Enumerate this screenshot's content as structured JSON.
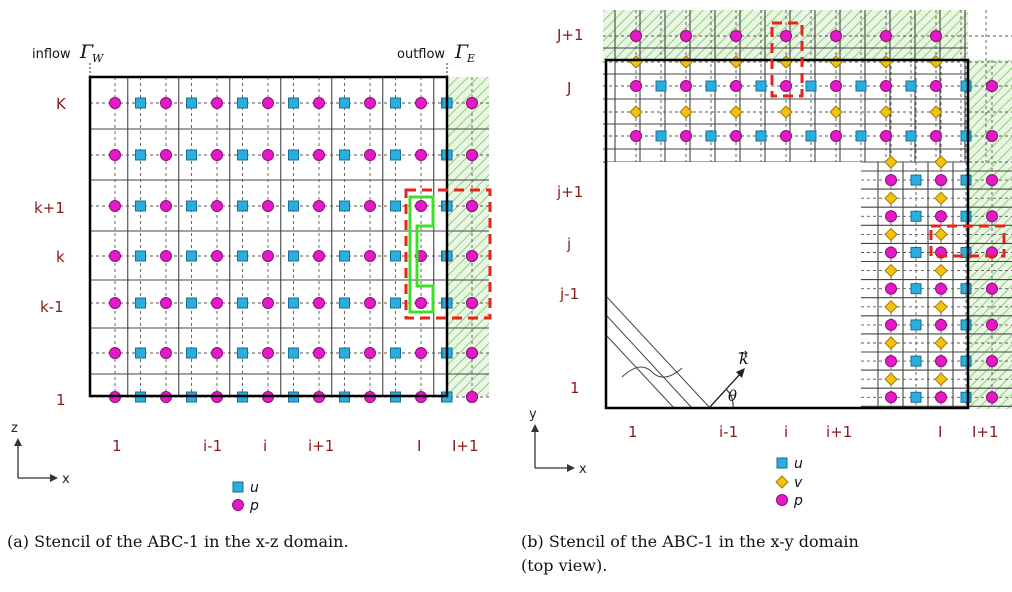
{
  "colors": {
    "u": "#29aee0",
    "p": "#e619c8",
    "v": "#f4c20d",
    "label": "#8b1a1a",
    "highlight_red": "#e8231c",
    "highlight_green": "#3ee027",
    "hatch": "#8fcf7a"
  },
  "panel_a": {
    "inflow_label": "inflow",
    "inflow_symbol": "Γ",
    "inflow_sub": "W",
    "outflow_label": "outflow",
    "outflow_symbol": "Γ",
    "outflow_sub": "E",
    "row_labels": [
      "K",
      "k+1",
      "k",
      "k-1",
      "1"
    ],
    "col_labels": [
      "1",
      "i-1",
      "i",
      "i+1",
      "I",
      "I+1"
    ],
    "axis_vertical": "z",
    "axis_horizontal": "x",
    "legend": [
      {
        "marker": "square-marker",
        "label": "u"
      },
      {
        "marker": "circle-marker",
        "label": "p"
      }
    ],
    "caption": "(a) Stencil of the ABC-1 in the x-z domain."
  },
  "panel_b": {
    "row_labels": [
      "J+1",
      "J",
      "j+1",
      "j",
      "j-1",
      "1"
    ],
    "col_labels": [
      "1",
      "i-1",
      "i",
      "i+1",
      "I",
      "I+1"
    ],
    "axis_vertical": "y",
    "axis_horizontal": "x",
    "vector_label": "k",
    "angle_label": "θ",
    "legend": [
      {
        "marker": "square-marker",
        "label": "u"
      },
      {
        "marker": "diamond-marker",
        "label": "v"
      },
      {
        "marker": "circle-marker",
        "label": "p"
      }
    ],
    "caption_line1": "(b) Stencil of the ABC-1 in the x-y domain",
    "caption_line2": "(top view)."
  }
}
